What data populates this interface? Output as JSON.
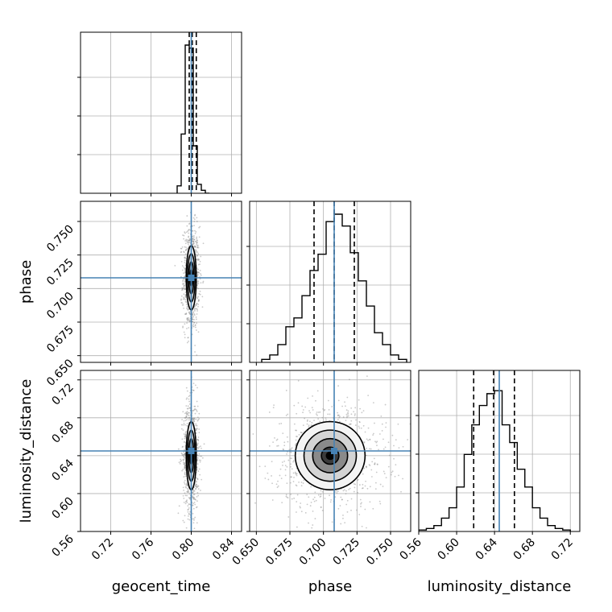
{
  "chart_data": {
    "type": "corner",
    "parameters": [
      "geocent_time",
      "phase",
      "luminosity_distance"
    ],
    "axis_labels": [
      "geocent_time",
      "phase",
      "luminosity_distance"
    ],
    "ranges": {
      "geocent_time": [
        0.69,
        0.85
      ],
      "phase": [
        0.645,
        0.765
      ],
      "luminosity_distance": [
        0.56,
        0.73
      ]
    },
    "tick_labels": {
      "geocent_time": [
        "0.72",
        "0.76",
        "0.80",
        "0.84"
      ],
      "phase": [
        "0.650",
        "0.675",
        "0.700",
        "0.725",
        "0.750"
      ],
      "luminosity_distance": [
        "0.56",
        "0.60",
        "0.64",
        "0.68",
        "0.72"
      ]
    },
    "truths": {
      "geocent_time": 0.8,
      "phase": 0.708,
      "luminosity_distance": 0.645
    },
    "quantiles": {
      "geocent_time": [
        0.798,
        0.801,
        0.805
      ],
      "phase": [
        0.693,
        0.708,
        0.723
      ],
      "luminosity_distance": [
        0.618,
        0.639,
        0.661
      ]
    },
    "histograms": {
      "geocent_time": {
        "edges": [
          0.786,
          0.79,
          0.794,
          0.798,
          0.802,
          0.806,
          0.81,
          0.814,
          0.818
        ],
        "counts": [
          0.05,
          0.4,
          1.0,
          0.98,
          0.32,
          0.06,
          0.02,
          0.0
        ]
      },
      "phase": {
        "edges": [
          0.654,
          0.66,
          0.666,
          0.672,
          0.678,
          0.684,
          0.69,
          0.696,
          0.702,
          0.708,
          0.714,
          0.72,
          0.726,
          0.732,
          0.738,
          0.744,
          0.75,
          0.756,
          0.762
        ],
        "counts": [
          0.02,
          0.05,
          0.12,
          0.24,
          0.3,
          0.45,
          0.62,
          0.73,
          0.95,
          1.0,
          0.92,
          0.74,
          0.55,
          0.38,
          0.2,
          0.12,
          0.05,
          0.02
        ]
      },
      "luminosity_distance": {
        "edges": [
          0.56,
          0.568,
          0.576,
          0.584,
          0.592,
          0.6,
          0.608,
          0.616,
          0.624,
          0.632,
          0.64,
          0.648,
          0.656,
          0.664,
          0.672,
          0.68,
          0.688,
          0.696,
          0.704,
          0.712,
          0.72
        ],
        "counts": [
          0.01,
          0.02,
          0.04,
          0.09,
          0.16,
          0.3,
          0.52,
          0.72,
          0.85,
          0.93,
          0.95,
          0.72,
          0.6,
          0.42,
          0.3,
          0.16,
          0.09,
          0.04,
          0.02,
          0.01
        ]
      }
    },
    "pairs": [
      {
        "x": "geocent_time",
        "y": "phase",
        "center": [
          0.8,
          0.708
        ],
        "sigma": [
          0.0025,
          0.012
        ]
      },
      {
        "x": "geocent_time",
        "y": "luminosity_distance",
        "center": [
          0.8,
          0.64
        ],
        "sigma": [
          0.0025,
          0.018
        ]
      },
      {
        "x": "phase",
        "y": "luminosity_distance",
        "center": [
          0.705,
          0.64
        ],
        "sigma": [
          0.013,
          0.018
        ]
      }
    ],
    "contour_levels_sigma": [
      0.5,
      1.0,
      1.5,
      2.0
    ],
    "truth_color": "#4682b4",
    "grid": true
  }
}
